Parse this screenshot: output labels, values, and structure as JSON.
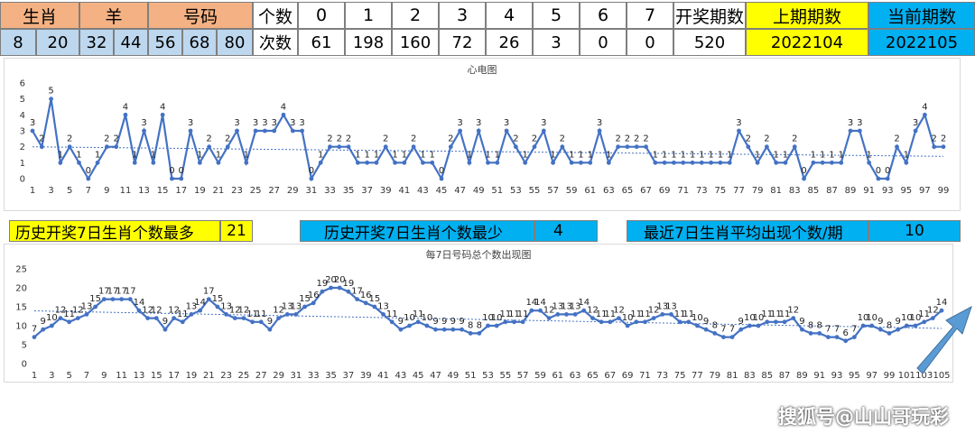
{
  "header": {
    "shengxiao_label": "生肖",
    "animal_label": "羊",
    "haoma_label": "号码",
    "numbers": [
      "8",
      "20",
      "32",
      "44",
      "56",
      "68",
      "80"
    ],
    "count_label": "个数",
    "times_label": "次数",
    "counts": [
      "0",
      "1",
      "2",
      "3",
      "4",
      "5",
      "6",
      "7"
    ],
    "times": [
      "61",
      "198",
      "160",
      "72",
      "26",
      "3",
      "0",
      "0"
    ],
    "total_periods_label": "开奖期数",
    "total_periods": "520",
    "prev_period_label": "上期期数",
    "prev_period": "2022104",
    "curr_period_label": "当前期数",
    "curr_period": "2022105"
  },
  "stats": {
    "max_label": "历史开奖7日生肖个数最多",
    "max_value": "21",
    "min_label": "历史开奖7日生肖个数最少",
    "min_value": "4",
    "avg_label": "最近7日生肖平均出现个数/期",
    "avg_value": "10"
  },
  "watermark": "搜狐号@山山哥玩彩",
  "colors": {
    "line": "#4472c4",
    "trend": "#4472c4",
    "orange": "#f4b183",
    "light_blue": "#bdd7ee",
    "yellow": "#ffff00",
    "cyan": "#00b0f0",
    "arrow": "#5b9bd5"
  },
  "chart_data": [
    {
      "type": "line",
      "title": "心电图",
      "x": [
        1,
        2,
        3,
        4,
        5,
        6,
        7,
        8,
        9,
        10,
        11,
        12,
        13,
        14,
        15,
        16,
        17,
        18,
        19,
        20,
        21,
        22,
        23,
        24,
        25,
        26,
        27,
        28,
        29,
        30,
        31,
        32,
        33,
        34,
        35,
        36,
        37,
        38,
        39,
        40,
        41,
        42,
        43,
        44,
        45,
        46,
        47,
        48,
        49,
        50,
        51,
        52,
        53,
        54,
        55,
        56,
        57,
        58,
        59,
        60,
        61,
        62,
        63,
        64,
        65,
        66,
        67,
        68,
        69,
        70,
        71,
        72,
        73,
        74,
        75,
        76,
        77,
        78,
        79,
        80,
        81,
        82,
        83,
        84,
        85,
        86,
        87,
        88,
        89,
        90,
        91,
        92,
        93,
        94,
        95,
        96,
        97,
        98,
        99
      ],
      "values": [
        3,
        2,
        5,
        1,
        2,
        1,
        0,
        1,
        2,
        2,
        4,
        1,
        3,
        1,
        4,
        0,
        0,
        3,
        1,
        2,
        1,
        2,
        3,
        1,
        3,
        3,
        3,
        4,
        3,
        3,
        0,
        1,
        2,
        2,
        2,
        1,
        1,
        1,
        2,
        1,
        1,
        2,
        1,
        1,
        0,
        2,
        3,
        1,
        3,
        1,
        1,
        3,
        2,
        1,
        2,
        3,
        1,
        2,
        1,
        1,
        1,
        3,
        1,
        2,
        2,
        2,
        2,
        1,
        1,
        1,
        1,
        1,
        1,
        1,
        1,
        1,
        3,
        2,
        1,
        2,
        1,
        1,
        2,
        0,
        1,
        1,
        1,
        1,
        3,
        3,
        1,
        0,
        0,
        2,
        1,
        3,
        4,
        2,
        2
      ],
      "xticks": [
        1,
        3,
        5,
        7,
        9,
        11,
        13,
        15,
        17,
        19,
        21,
        23,
        25,
        27,
        29,
        31,
        33,
        35,
        37,
        39,
        41,
        43,
        45,
        47,
        49,
        51,
        53,
        55,
        57,
        59,
        61,
        63,
        65,
        67,
        69,
        71,
        73,
        75,
        77,
        79,
        81,
        83,
        85,
        87,
        89,
        91,
        93,
        95,
        97,
        99
      ],
      "yticks": [
        0,
        1,
        2,
        3,
        4,
        5,
        6
      ],
      "ylim": [
        0,
        6
      ],
      "trendline": true
    },
    {
      "type": "line",
      "title": "每7日号码总个数出现图",
      "x": [
        1,
        2,
        3,
        4,
        5,
        6,
        7,
        8,
        9,
        10,
        11,
        12,
        13,
        14,
        15,
        16,
        17,
        18,
        19,
        20,
        21,
        22,
        23,
        24,
        25,
        26,
        27,
        28,
        29,
        30,
        31,
        32,
        33,
        34,
        35,
        36,
        37,
        38,
        39,
        40,
        41,
        42,
        43,
        44,
        45,
        46,
        47,
        48,
        49,
        50,
        51,
        52,
        53,
        54,
        55,
        56,
        57,
        58,
        59,
        60,
        61,
        62,
        63,
        64,
        65,
        66,
        67,
        68,
        69,
        70,
        71,
        72,
        73,
        74,
        75,
        76,
        77,
        78,
        79,
        80,
        81,
        82,
        83,
        84,
        85,
        86,
        87,
        88,
        89,
        90,
        91,
        92,
        93,
        94,
        95,
        96,
        97,
        98,
        99,
        100,
        101,
        102,
        103,
        104,
        105
      ],
      "values": [
        7,
        9,
        10,
        12,
        11,
        12,
        13,
        15,
        17,
        17,
        17,
        17,
        14,
        12,
        12,
        9,
        12,
        11,
        13,
        14,
        17,
        15,
        13,
        12,
        12,
        11,
        11,
        9,
        12,
        13,
        13,
        15,
        16,
        19,
        20,
        20,
        19,
        17,
        16,
        15,
        13,
        11,
        9,
        10,
        11,
        10,
        9,
        9,
        9,
        9,
        8,
        8,
        10,
        10,
        11,
        11,
        11,
        14,
        14,
        12,
        13,
        13,
        13,
        14,
        12,
        11,
        11,
        12,
        10,
        11,
        11,
        12,
        13,
        13,
        11,
        11,
        10,
        9,
        8,
        7,
        7,
        9,
        10,
        10,
        11,
        11,
        11,
        12,
        9,
        8,
        8,
        7,
        7,
        6,
        7,
        10,
        10,
        9,
        8,
        9,
        10,
        10,
        11,
        12,
        14
      ],
      "xticks": [
        1,
        3,
        5,
        7,
        9,
        11,
        13,
        15,
        17,
        19,
        21,
        23,
        25,
        27,
        29,
        31,
        33,
        35,
        37,
        39,
        41,
        43,
        45,
        47,
        49,
        51,
        53,
        55,
        57,
        59,
        61,
        63,
        65,
        67,
        69,
        71,
        73,
        75,
        77,
        79,
        81,
        83,
        85,
        87,
        89,
        91,
        93,
        95,
        97,
        99,
        101,
        103,
        105
      ],
      "yticks": [
        0,
        5,
        10,
        15,
        20,
        25
      ],
      "ylim": [
        0,
        25
      ],
      "trendline": true
    }
  ]
}
